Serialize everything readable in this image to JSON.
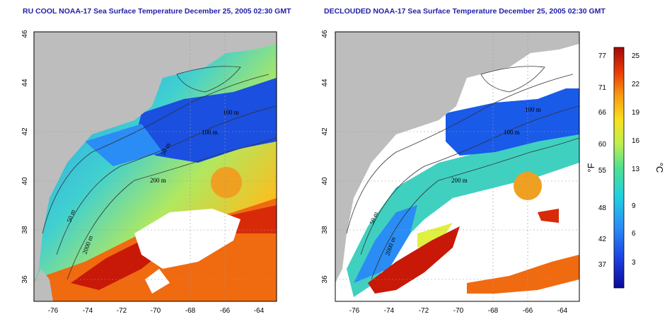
{
  "titles": {
    "left": "RU COOL NOAA-17 Sea Surface Temperature December 25, 2005 02:30 GMT",
    "right": "DECLOUDED NOAA-17 Sea Surface Temperature December 25, 2005 02:30 GMT"
  },
  "axes": {
    "lat_ticks": [
      "46",
      "44",
      "42",
      "40",
      "38",
      "36"
    ],
    "lon_ticks": [
      "-76",
      "-74",
      "-72",
      "-70",
      "-68",
      "-66",
      "-64"
    ]
  },
  "contour_labels": {
    "left": [
      "100 m",
      "100 m",
      "50 m",
      "200 m",
      "50 m",
      "2000 m"
    ],
    "right": [
      "100 m",
      "100 m",
      "200 m",
      "50 m",
      "2000 m"
    ]
  },
  "colorbar": {
    "fahrenheit_label": "°F",
    "celsius_label": "°C",
    "fahrenheit_ticks": [
      "77",
      "71",
      "66",
      "60",
      "55",
      "48",
      "42",
      "37"
    ],
    "celsius_ticks": [
      "25",
      "22",
      "19",
      "16",
      "13",
      "9",
      "6",
      "3"
    ]
  },
  "colors": {
    "land": "#bdbdbd",
    "cloud": "#ffffff",
    "cold": "#1a3fd6",
    "warm": "#d81e05"
  }
}
